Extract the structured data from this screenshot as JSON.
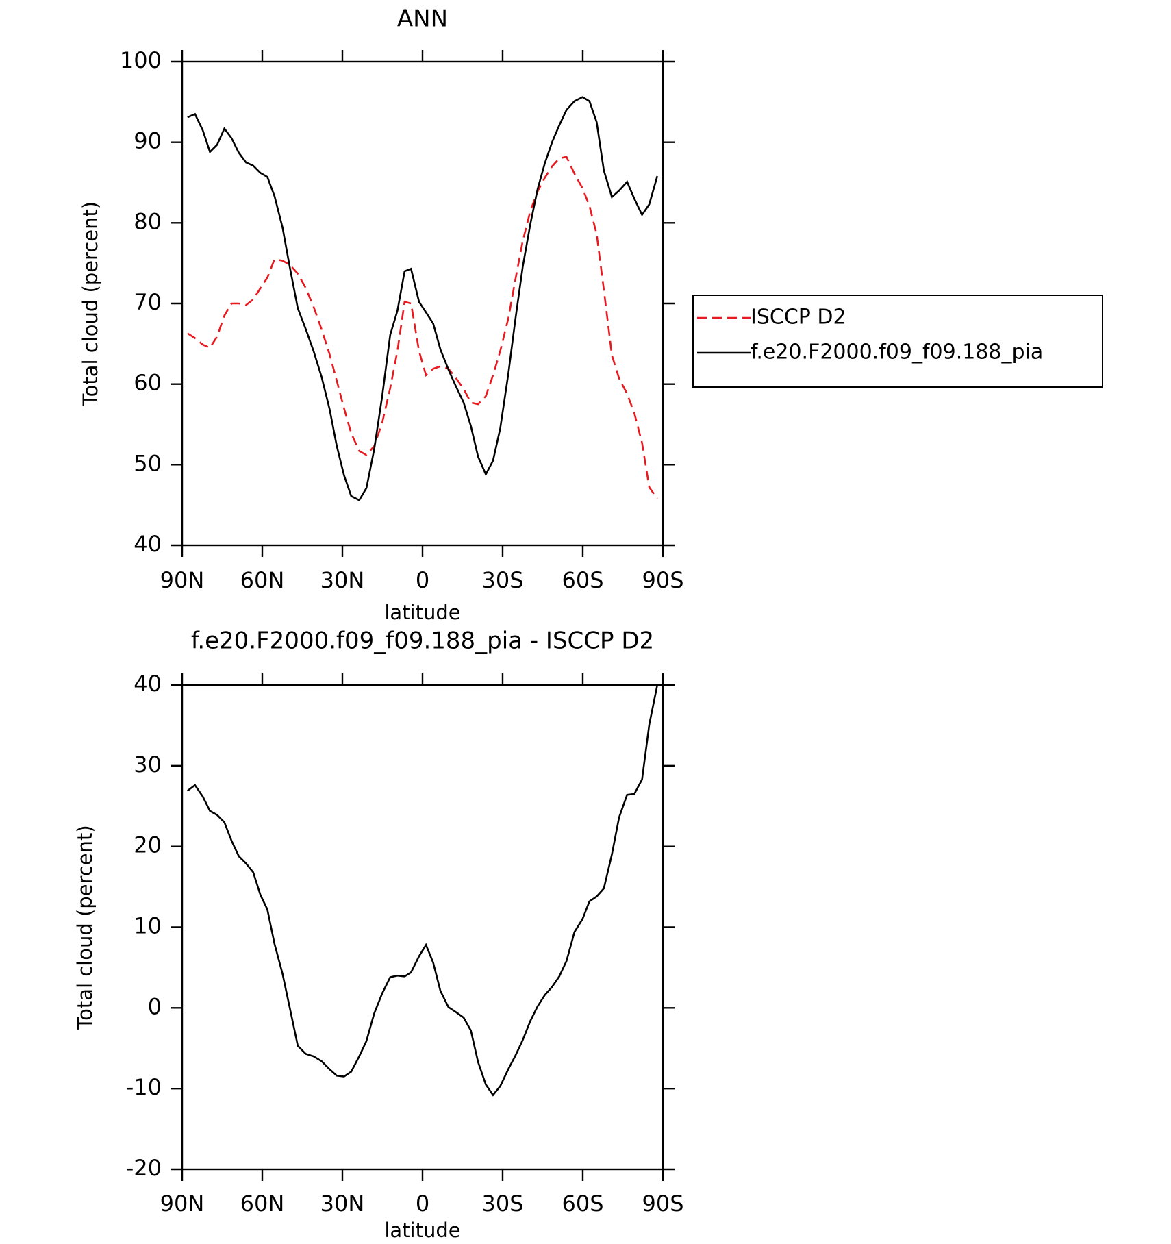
{
  "chart_data": [
    {
      "type": "line",
      "title": "ANN",
      "xlabel": "latitude",
      "ylabel": "Total cloud (percent)",
      "x": [
        88,
        85.2,
        82.3,
        79.6,
        76.9,
        74.2,
        71.5,
        68.8,
        66.1,
        63.4,
        60.7,
        58.1,
        55.4,
        52.4,
        49.7,
        46.7,
        43.7,
        40.8,
        37.8,
        34.8,
        32.1,
        29.4,
        26.7,
        23.7,
        21,
        18.1,
        15.1,
        12.1,
        9.4,
        6.7,
        4.3,
        1.3,
        -1.3,
        -4,
        -6.7,
        -9.7,
        -12.4,
        -15.4,
        -18.1,
        -20.8,
        -23.7,
        -26.4,
        -29.1,
        -32.1,
        -34.8,
        -37.5,
        -40.4,
        -43.1,
        -45.8,
        -48.5,
        -51.2,
        -53.9,
        -56.9,
        -59.9,
        -62.5,
        -65.2,
        -67.9,
        -70.9,
        -73.6,
        -76.6,
        -79.3,
        -82.2,
        -84.9,
        -87.9
      ],
      "series": [
        {
          "name": "ISCCP D2",
          "color": "#e8191f",
          "dash": true,
          "values": [
            66.3,
            65.7,
            64.9,
            64.5,
            65.9,
            68.5,
            70.0,
            70.0,
            69.8,
            70.5,
            71.9,
            73.2,
            75.5,
            75.3,
            74.8,
            73.7,
            71.9,
            69.6,
            66.8,
            63.7,
            60.4,
            57.0,
            53.9,
            51.7,
            51.2,
            52.3,
            55.2,
            59.5,
            64.1,
            70.2,
            70.0,
            64.1,
            61.1,
            61.9,
            62.2,
            61.9,
            60.8,
            59.4,
            57.7,
            57.5,
            58.5,
            61.1,
            64.1,
            68.1,
            73.0,
            77.7,
            81.5,
            83.9,
            85.6,
            87.0,
            88.0,
            88.2,
            86.1,
            84.3,
            82.1,
            78.6,
            71.7,
            63.6,
            60.7,
            58.8,
            56.4,
            52.7,
            47.2,
            45.8
          ]
        },
        {
          "name": "f.e20.F2000.f09_f09.188_pia",
          "color": "#000000",
          "dash": false,
          "values": [
            93.1,
            93.5,
            91.5,
            88.8,
            89.7,
            91.7,
            90.5,
            88.7,
            87.5,
            87.1,
            86.2,
            85.7,
            83.3,
            79.4,
            74.5,
            69.4,
            66.8,
            64.1,
            60.9,
            56.9,
            52.3,
            48.7,
            46.1,
            45.6,
            47.1,
            51.9,
            58.5,
            66.1,
            69.1,
            74.0,
            74.3,
            70.2,
            68.9,
            67.5,
            64.3,
            61.8,
            59.8,
            57.7,
            54.8,
            51.0,
            48.8,
            50.5,
            54.5,
            61.2,
            68.1,
            74.5,
            79.9,
            84.2,
            87.4,
            90.0,
            92.1,
            94.0,
            95.1,
            95.6,
            95.1,
            92.5,
            86.5,
            83.2,
            84.0,
            85.1,
            83.0,
            81.0,
            82.3,
            85.8
          ]
        }
      ],
      "xlim": [
        90,
        -90
      ],
      "xticks": [
        {
          "value": 90,
          "label": "90N"
        },
        {
          "value": 60,
          "label": "60N"
        },
        {
          "value": 30,
          "label": "30N"
        },
        0,
        {
          "value": -30,
          "label": "30S"
        },
        {
          "value": -60,
          "label": "60S"
        },
        {
          "value": -90,
          "label": "90S"
        }
      ],
      "ylim": [
        40,
        100
      ],
      "yticks": [
        40,
        50,
        60,
        70,
        80,
        90,
        100
      ],
      "legend": "outside right"
    },
    {
      "type": "line",
      "title": "f.e20.F2000.f09_f09.188_pia - ISCCP D2",
      "xlabel": "latitude",
      "ylabel": "Total cloud (percent)",
      "x": [
        88,
        85.2,
        82.3,
        79.6,
        76.9,
        74.2,
        71.5,
        68.8,
        66.1,
        63.4,
        60.7,
        58.1,
        55.4,
        52.4,
        49.7,
        46.7,
        43.7,
        40.8,
        37.8,
        34.8,
        32.1,
        29.4,
        26.7,
        23.7,
        21,
        18.1,
        15.1,
        12.1,
        9.4,
        6.7,
        4.3,
        1.3,
        -1.3,
        -4,
        -6.7,
        -9.7,
        -12.4,
        -15.4,
        -18.1,
        -20.8,
        -23.7,
        -26.4,
        -29.1,
        -32.1,
        -34.8,
        -37.5,
        -40.4,
        -43.1,
        -45.8,
        -48.5,
        -51.2,
        -53.9,
        -56.9,
        -59.9,
        -62.5,
        -65.2,
        -67.9,
        -70.9,
        -73.6,
        -76.6,
        -79.3,
        -82.2,
        -84.9,
        -87.9
      ],
      "series": [
        {
          "color": "#000000",
          "dash": false,
          "values": [
            26.9,
            27.6,
            26.2,
            24.4,
            23.9,
            23.0,
            20.7,
            18.8,
            17.9,
            16.8,
            14.0,
            12.2,
            7.9,
            4.2,
            0.0,
            -4.7,
            -5.7,
            -6.0,
            -6.6,
            -7.6,
            -8.4,
            -8.5,
            -7.9,
            -6.0,
            -4.1,
            -0.7,
            1.8,
            3.8,
            4.0,
            3.9,
            4.4,
            6.4,
            7.8,
            5.6,
            2.1,
            0.1,
            -0.5,
            -1.2,
            -2.8,
            -6.7,
            -9.5,
            -10.8,
            -9.7,
            -7.6,
            -5.9,
            -4.0,
            -1.6,
            0.2,
            1.6,
            2.6,
            3.9,
            5.8,
            9.4,
            11.0,
            13.2,
            13.8,
            14.8,
            19.0,
            23.6,
            26.4,
            26.5,
            28.3,
            35.1,
            40.0
          ]
        }
      ],
      "xlim": [
        90,
        -90
      ],
      "xticks": [
        {
          "value": 90,
          "label": "90N"
        },
        {
          "value": 60,
          "label": "60N"
        },
        {
          "value": 30,
          "label": "30N"
        },
        0,
        {
          "value": -30,
          "label": "30S"
        },
        {
          "value": -60,
          "label": "60S"
        },
        {
          "value": -90,
          "label": "90S"
        }
      ],
      "ylim": [
        -20,
        40
      ],
      "yticks": [
        -20,
        -10,
        0,
        10,
        20,
        30,
        40
      ]
    }
  ]
}
